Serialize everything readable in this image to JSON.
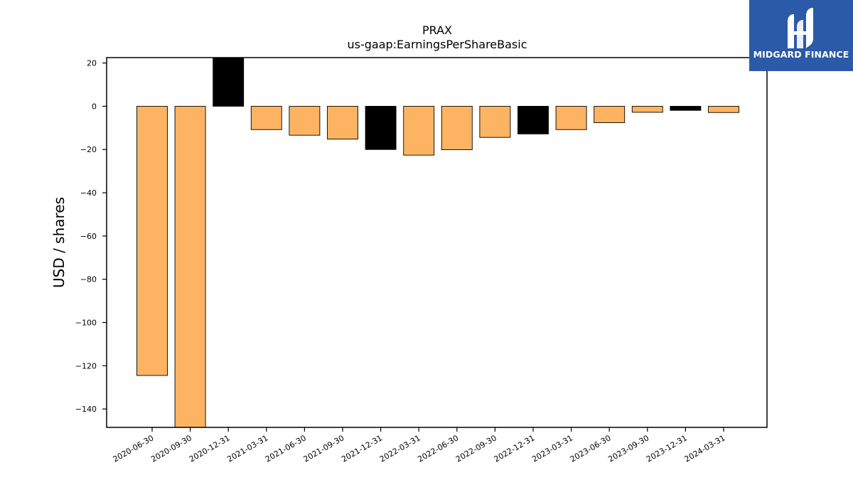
{
  "brand": {
    "name": "MIDGARD FINANCE",
    "color": "#2b5aa8",
    "icon": "midgard-logo-icon"
  },
  "chart_data": {
    "type": "bar",
    "title": "PRAX",
    "subtitle": "us-gaap:EarningsPerShareBasic",
    "xlabel": "",
    "ylabel": "USD / shares",
    "ylim": [
      -148.5,
      22.5
    ],
    "yticks": [
      20,
      0,
      -20,
      -40,
      -60,
      -80,
      -100,
      -120,
      -140
    ],
    "grid": false,
    "categories": [
      "2020-06-30",
      "2020-09-30",
      "2020-12-31",
      "2021-03-31",
      "2021-06-30",
      "2021-09-30",
      "2021-12-31",
      "2022-03-31",
      "2022-06-30",
      "2022-09-30",
      "2022-12-31",
      "2023-03-31",
      "2023-06-30",
      "2023-09-30",
      "2023-12-31",
      "2024-03-31"
    ],
    "values": [
      -124.5,
      -148.5,
      22.5,
      -10.8,
      -13.4,
      -15.2,
      -20.0,
      -22.6,
      -20.1,
      -14.4,
      -12.8,
      -10.8,
      -7.6,
      -2.8,
      -1.9,
      -2.9
    ],
    "bar_colors": [
      "#fdb462",
      "#fdb462",
      "#000000",
      "#fdb462",
      "#fdb462",
      "#fdb462",
      "#000000",
      "#fdb462",
      "#fdb462",
      "#fdb462",
      "#000000",
      "#fdb462",
      "#fdb462",
      "#fdb462",
      "#000000",
      "#fdb462"
    ],
    "colors": {
      "quarter": "#fdb462",
      "fiscal_year_end": "#000000"
    }
  }
}
